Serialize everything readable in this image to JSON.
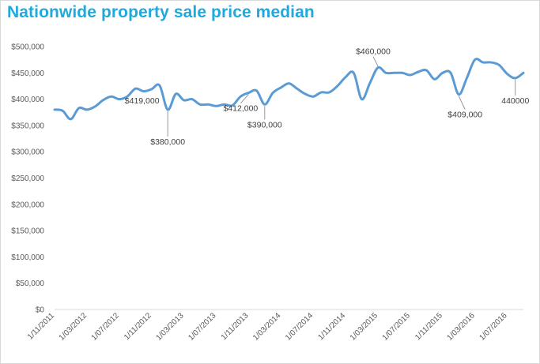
{
  "chart_data": {
    "type": "line",
    "title": "Nationwide property sale price median",
    "xlabel": "",
    "ylabel": "",
    "ylim": [
      0,
      500000
    ],
    "y_ticks": [
      "$0",
      "$50,000",
      "$100,000",
      "$150,000",
      "$200,000",
      "$250,000",
      "$300,000",
      "$350,000",
      "$400,000",
      "$450,000",
      "$500,000"
    ],
    "x_tick_labels": [
      "1/11/2011",
      "1/03/2012",
      "1/07/2012",
      "1/11/2012",
      "1/03/2013",
      "1/07/2013",
      "1/11/2013",
      "1/03/2014",
      "1/07/2014",
      "1/11/2014",
      "1/03/2015",
      "1/07/2015",
      "1/11/2015",
      "1/03/2016",
      "1/07/2016"
    ],
    "grid": false,
    "legend": "none",
    "color": "#5b9bd5",
    "series": [
      {
        "x": [
          "2011-11",
          "2011-12",
          "2012-01",
          "2012-02",
          "2012-03",
          "2012-04",
          "2012-05",
          "2012-06",
          "2012-07",
          "2012-08",
          "2012-09",
          "2012-10",
          "2012-11",
          "2012-12",
          "2013-01",
          "2013-02",
          "2013-03",
          "2013-04",
          "2013-05",
          "2013-06",
          "2013-07",
          "2013-08",
          "2013-09",
          "2013-10",
          "2013-11",
          "2013-12",
          "2014-01",
          "2014-02",
          "2014-03",
          "2014-04",
          "2014-05",
          "2014-06",
          "2014-07",
          "2014-08",
          "2014-09",
          "2014-10",
          "2014-11",
          "2014-12",
          "2015-01",
          "2015-02",
          "2015-03",
          "2015-04",
          "2015-05",
          "2015-06",
          "2015-07",
          "2015-08",
          "2015-09",
          "2015-10",
          "2015-11",
          "2015-12",
          "2016-01",
          "2016-02",
          "2016-03",
          "2016-04",
          "2016-05",
          "2016-06",
          "2016-07",
          "2016-08",
          "2016-09"
        ],
        "values": [
          380000,
          378000,
          362000,
          383000,
          380000,
          386000,
          398000,
          405000,
          400000,
          405000,
          420000,
          415000,
          419000,
          426000,
          380000,
          410000,
          398000,
          400000,
          390000,
          390000,
          387000,
          390000,
          388000,
          405000,
          412000,
          416000,
          390000,
          412000,
          422000,
          430000,
          420000,
          410000,
          405000,
          413000,
          413000,
          425000,
          442000,
          450000,
          400000,
          430000,
          460000,
          450000,
          450000,
          450000,
          446000,
          452000,
          455000,
          438000,
          450000,
          450000,
          409000,
          440000,
          475000,
          470000,
          470000,
          465000,
          448000,
          440000,
          450000
        ]
      }
    ],
    "data_labels": [
      {
        "text": "$419,000",
        "x": "2012-11",
        "value": 419000
      },
      {
        "text": "$380,000",
        "x": "2013-01",
        "value": 380000
      },
      {
        "text": "$412,000",
        "x": "2013-11",
        "value": 412000
      },
      {
        "text": "$390,000",
        "x": "2014-01",
        "value": 390000
      },
      {
        "text": "$460,000",
        "x": "2015-03",
        "value": 460000
      },
      {
        "text": "$409,000",
        "x": "2016-01",
        "value": 409000
      },
      {
        "text": "440000",
        "x": "2016-08",
        "value": 440000
      }
    ]
  }
}
